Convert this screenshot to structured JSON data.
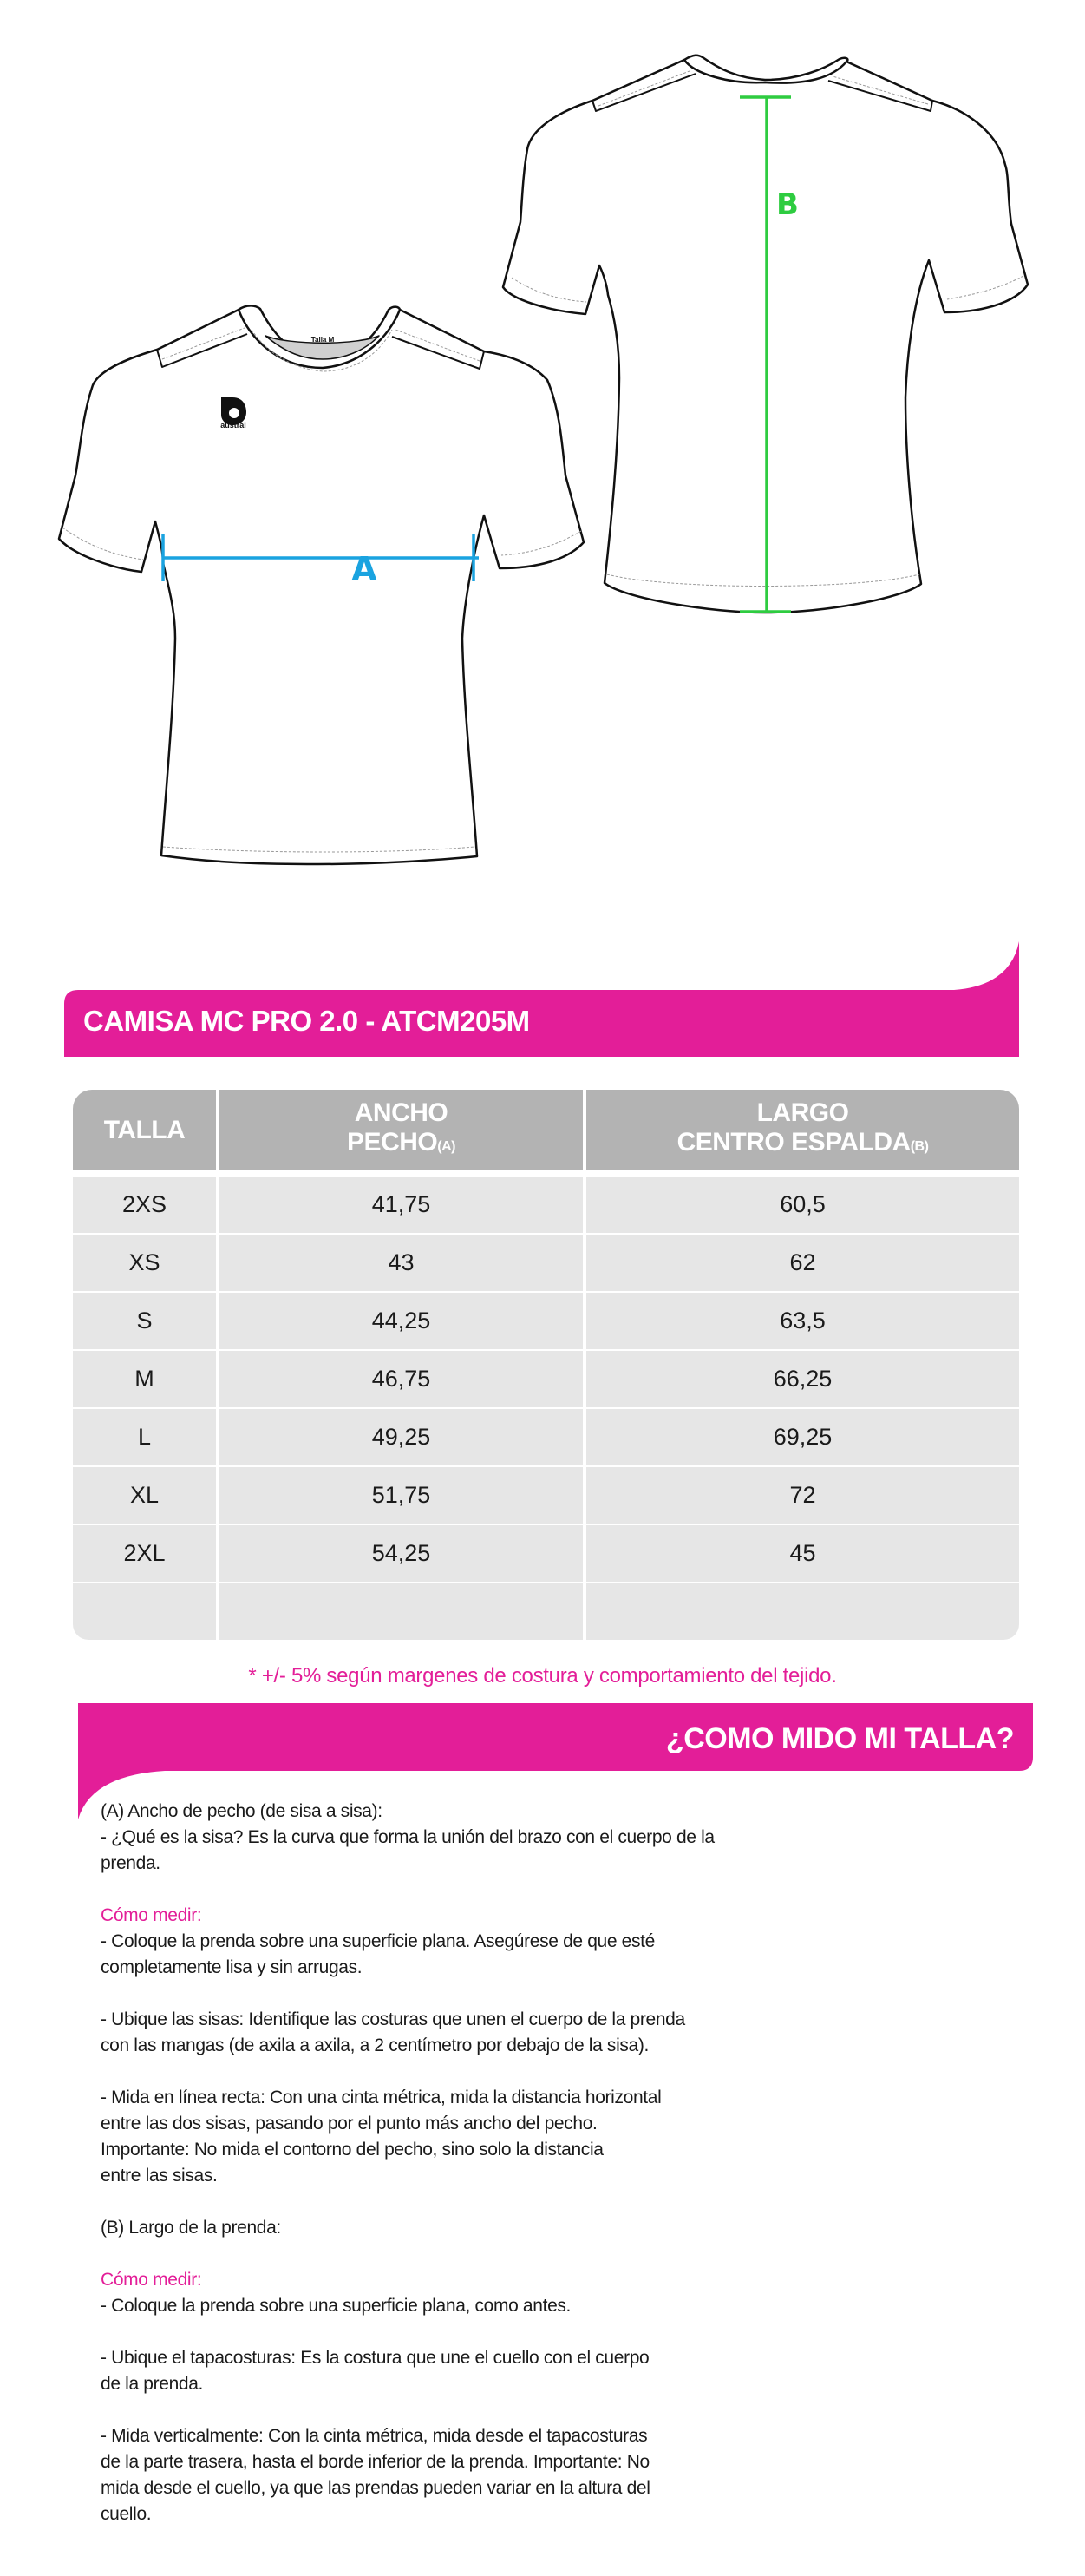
{
  "colors": {
    "brand_pink": "#e31e98",
    "measure_a": "#1aa3e0",
    "measure_b": "#2ecc40",
    "header_gray": "#b3b3b3",
    "row_gray": "#e6e6e6"
  },
  "illustration": {
    "label_a": "A",
    "label_b": "B",
    "neck_tag": "Talla M",
    "logo_text": "austral"
  },
  "product_title": "CAMISA MC PRO 2.0 - ATCM205M",
  "table": {
    "headers": [
      {
        "line1": "TALLA",
        "line2": "",
        "sub": ""
      },
      {
        "line1": "ANCHO",
        "line2": "PECHO",
        "sub": "(A)"
      },
      {
        "line1": "LARGO",
        "line2": "CENTRO ESPALDA",
        "sub": "(B)"
      }
    ],
    "rows": [
      [
        "2XS",
        "41,75",
        "60,5"
      ],
      [
        "XS",
        "43",
        "62"
      ],
      [
        "S",
        "44,25",
        "63,5"
      ],
      [
        "M",
        "46,75",
        "66,25"
      ],
      [
        "L",
        "49,25",
        "69,25"
      ],
      [
        "XL",
        "51,75",
        "72"
      ],
      [
        "2XL",
        "54,25",
        "45"
      ],
      [
        "",
        "",
        ""
      ]
    ]
  },
  "tolerance_note": "* +/- 5% según margenes de costura y comportamiento del tejido.",
  "how_to_title": "¿COMO MIDO MI TALLA?",
  "instructions": [
    {
      "text": "(A) Ancho de pecho (de sisa a sisa):",
      "pink": false
    },
    {
      "text": "- ¿Qué es la sisa? Es la curva que forma la unión del brazo con el cuerpo de la",
      "pink": false
    },
    {
      "text": "prenda.",
      "pink": false
    },
    {
      "text": "",
      "pink": false
    },
    {
      "text": "Cómo medir:",
      "pink": true
    },
    {
      "text": "- Coloque la prenda sobre una superficie plana. Asegúrese de que esté",
      "pink": false
    },
    {
      "text": "completamente lisa y sin arrugas.",
      "pink": false
    },
    {
      "text": "",
      "pink": false
    },
    {
      "text": "- Ubique las sisas: Identifique las costuras que unen el cuerpo de la prenda",
      "pink": false
    },
    {
      "text": "con las mangas (de axila a axila, a 2 centímetro por debajo de la sisa).",
      "pink": false
    },
    {
      "text": "",
      "pink": false
    },
    {
      "text": "- Mida en línea recta: Con una cinta métrica, mida la distancia horizontal",
      "pink": false
    },
    {
      "text": "entre las dos sisas, pasando por el punto más ancho del pecho.",
      "pink": false
    },
    {
      "text": "Importante: No mida el contorno del pecho, sino solo la distancia",
      "pink": false
    },
    {
      "text": "entre las sisas.",
      "pink": false
    },
    {
      "text": "",
      "pink": false
    },
    {
      "text": "(B) Largo de la prenda:",
      "pink": false
    },
    {
      "text": "",
      "pink": false
    },
    {
      "text": "Cómo medir:",
      "pink": true
    },
    {
      "text": "- Coloque la prenda sobre una superficie plana, como antes.",
      "pink": false
    },
    {
      "text": "",
      "pink": false
    },
    {
      "text": "- Ubique el tapacosturas: Es la costura que une el cuello con el cuerpo",
      "pink": false
    },
    {
      "text": "de la prenda.",
      "pink": false
    },
    {
      "text": "",
      "pink": false
    },
    {
      "text": "- Mida verticalmente: Con la cinta métrica, mida desde el tapacosturas",
      "pink": false
    },
    {
      "text": "de la parte trasera, hasta el borde inferior de la prenda. Importante: No",
      "pink": false
    },
    {
      "text": "mida desde el cuello, ya que las prendas pueden variar en la altura del",
      "pink": false
    },
    {
      "text": "cuello.",
      "pink": false
    }
  ]
}
